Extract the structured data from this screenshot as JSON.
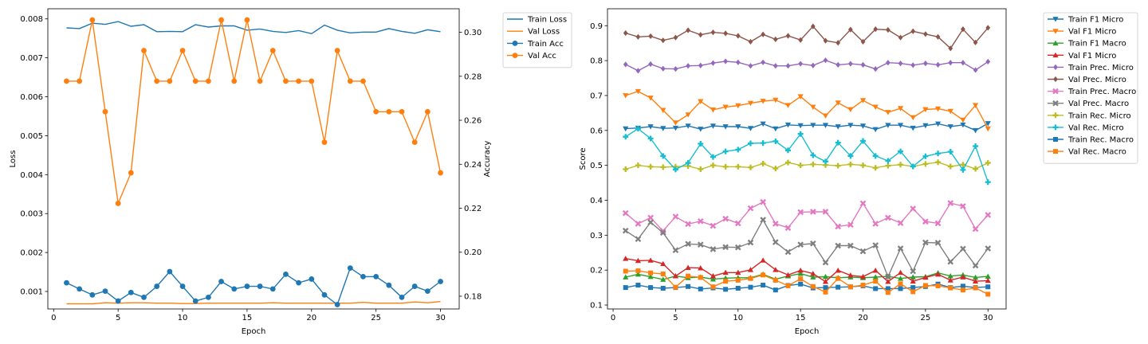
{
  "chart_data": [
    {
      "type": "line",
      "xlabel": "Epoch",
      "ylabel": "Loss",
      "y2label": "Accuracy",
      "xlim": [
        -0.45,
        31.45
      ],
      "ylim": [
        0.00055,
        0.00826
      ],
      "y2lim": [
        0.1742,
        0.3107
      ],
      "xticks": [
        0,
        5,
        10,
        15,
        20,
        25,
        30
      ],
      "yticks": [
        0.001,
        0.002,
        0.003,
        0.004,
        0.005,
        0.006,
        0.007,
        0.008
      ],
      "ytick_labels": [
        "0.001",
        "0.002",
        "0.003",
        "0.004",
        "0.005",
        "0.006",
        "0.007",
        "0.008"
      ],
      "y2ticks": [
        0.18,
        0.2,
        0.22,
        0.24,
        0.26,
        0.28,
        0.3
      ],
      "y2tick_labels": [
        "0.18",
        "0.20",
        "0.22",
        "0.24",
        "0.26",
        "0.28",
        "0.30"
      ],
      "grid": false,
      "legend_position": "outside-top-right",
      "x": [
        1,
        2,
        3,
        4,
        5,
        6,
        7,
        8,
        9,
        10,
        11,
        12,
        13,
        14,
        15,
        16,
        17,
        18,
        19,
        20,
        21,
        22,
        23,
        24,
        25,
        26,
        27,
        28,
        29,
        30
      ],
      "series": [
        {
          "name": "Train Loss",
          "axis": "left",
          "color": "#1f77b4",
          "marker": "none",
          "values": [
            0.00777,
            0.00775,
            0.00789,
            0.00786,
            0.00793,
            0.00781,
            0.00785,
            0.00767,
            0.00768,
            0.00767,
            0.00785,
            0.00779,
            0.00782,
            0.00782,
            0.00771,
            0.00774,
            0.00768,
            0.00765,
            0.0077,
            0.00762,
            0.00784,
            0.00771,
            0.00764,
            0.00766,
            0.00766,
            0.00775,
            0.00768,
            0.00763,
            0.00772,
            0.00767
          ]
        },
        {
          "name": "Val Loss",
          "axis": "left",
          "color": "#ff7f0e",
          "marker": "none",
          "values": [
            0.00068,
            0.00068,
            0.00068,
            0.00071,
            0.0007,
            0.00071,
            0.00071,
            0.0007,
            0.0007,
            0.00069,
            0.00069,
            0.0007,
            0.0007,
            0.0007,
            0.0007,
            0.0007,
            0.00071,
            0.0007,
            0.0007,
            0.0007,
            0.0007,
            0.0007,
            0.0007,
            0.00072,
            0.0007,
            0.0007,
            0.0007,
            0.00073,
            0.00071,
            0.00074
          ]
        },
        {
          "name": "Train Acc",
          "axis": "right",
          "color": "#1f77b4",
          "marker": "circle",
          "values": [
            0.1861,
            0.1833,
            0.1806,
            0.1823,
            0.1778,
            0.1817,
            0.1795,
            0.1845,
            0.1912,
            0.1845,
            0.1778,
            0.1795,
            0.1867,
            0.1833,
            0.1845,
            0.1845,
            0.1833,
            0.19,
            0.1861,
            0.1878,
            0.1806,
            0.1762,
            0.1928,
            0.1889,
            0.1889,
            0.185,
            0.1795,
            0.1845,
            0.1823,
            0.1867
          ]
        },
        {
          "name": "Val Acc",
          "axis": "right",
          "color": "#ff7f0e",
          "marker": "circle",
          "values": [
            0.2778,
            0.2778,
            0.3056,
            0.2639,
            0.2222,
            0.2361,
            0.2917,
            0.2778,
            0.2778,
            0.2917,
            0.2778,
            0.2778,
            0.3056,
            0.2778,
            0.3056,
            0.2778,
            0.2917,
            0.2778,
            0.2778,
            0.2778,
            0.25,
            0.2917,
            0.2778,
            0.2778,
            0.2639,
            0.2639,
            0.2639,
            0.25,
            0.2639,
            0.2361
          ]
        }
      ]
    },
    {
      "type": "line",
      "xlabel": "Epoch",
      "ylabel": "Score",
      "xlim": [
        -0.45,
        31.45
      ],
      "ylim": [
        0.0887,
        0.9485
      ],
      "xticks": [
        0,
        5,
        10,
        15,
        20,
        25,
        30
      ],
      "yticks": [
        0.1,
        0.2,
        0.3,
        0.4,
        0.5,
        0.6,
        0.7,
        0.8,
        0.9
      ],
      "ytick_labels": [
        "0.1",
        "0.2",
        "0.3",
        "0.4",
        "0.5",
        "0.6",
        "0.7",
        "0.8",
        "0.9"
      ],
      "grid": false,
      "legend_position": "outside-top-right",
      "x": [
        1,
        2,
        3,
        4,
        5,
        6,
        7,
        8,
        9,
        10,
        11,
        12,
        13,
        14,
        15,
        16,
        17,
        18,
        19,
        20,
        21,
        22,
        23,
        24,
        25,
        26,
        27,
        28,
        29,
        30
      ],
      "series": [
        {
          "name": "Train F1 Micro",
          "color": "#1f77b4",
          "marker": "triangle-down",
          "values": [
            0.605,
            0.607,
            0.611,
            0.606,
            0.607,
            0.613,
            0.604,
            0.613,
            0.611,
            0.611,
            0.606,
            0.619,
            0.605,
            0.616,
            0.614,
            0.615,
            0.615,
            0.611,
            0.615,
            0.613,
            0.603,
            0.615,
            0.615,
            0.607,
            0.614,
            0.619,
            0.611,
            0.616,
            0.6,
            0.62
          ]
        },
        {
          "name": "Val F1 Micro",
          "color": "#ff7f0e",
          "marker": "triangle-down",
          "values": [
            0.7,
            0.712,
            0.693,
            0.658,
            0.622,
            0.645,
            0.683,
            0.659,
            0.667,
            0.671,
            0.678,
            0.684,
            0.687,
            0.672,
            0.697,
            0.667,
            0.642,
            0.679,
            0.66,
            0.686,
            0.667,
            0.652,
            0.663,
            0.637,
            0.66,
            0.662,
            0.655,
            0.63,
            0.672,
            0.605
          ]
        },
        {
          "name": "Train F1 Macro",
          "color": "#2ca02c",
          "marker": "triangle-up",
          "values": [
            0.18,
            0.188,
            0.181,
            0.173,
            0.183,
            0.178,
            0.18,
            0.174,
            0.177,
            0.178,
            0.178,
            0.188,
            0.174,
            0.183,
            0.19,
            0.18,
            0.181,
            0.178,
            0.18,
            0.178,
            0.18,
            0.182,
            0.176,
            0.18,
            0.181,
            0.192,
            0.183,
            0.186,
            0.179,
            0.182
          ]
        },
        {
          "name": "Val F1 Micro",
          "color": "#d62728",
          "marker": "triangle-up",
          "values": [
            0.233,
            0.227,
            0.228,
            0.218,
            0.183,
            0.207,
            0.206,
            0.183,
            0.193,
            0.193,
            0.201,
            0.228,
            0.201,
            0.186,
            0.199,
            0.19,
            0.167,
            0.199,
            0.185,
            0.181,
            0.199,
            0.167,
            0.193,
            0.168,
            0.179,
            0.188,
            0.171,
            0.18,
            0.168,
            0.17
          ]
        },
        {
          "name": "Train Prec. Micro",
          "color": "#9467bd",
          "marker": "diamond",
          "values": [
            0.789,
            0.771,
            0.79,
            0.777,
            0.776,
            0.785,
            0.786,
            0.793,
            0.798,
            0.795,
            0.785,
            0.795,
            0.785,
            0.785,
            0.791,
            0.786,
            0.801,
            0.788,
            0.791,
            0.788,
            0.776,
            0.794,
            0.792,
            0.787,
            0.792,
            0.788,
            0.794,
            0.794,
            0.773,
            0.797
          ]
        },
        {
          "name": "Val Prec. Micro",
          "color": "#8c564b",
          "marker": "diamond",
          "values": [
            0.879,
            0.868,
            0.87,
            0.858,
            0.866,
            0.887,
            0.874,
            0.881,
            0.878,
            0.871,
            0.854,
            0.875,
            0.861,
            0.871,
            0.859,
            0.898,
            0.857,
            0.851,
            0.889,
            0.854,
            0.89,
            0.888,
            0.866,
            0.884,
            0.876,
            0.868,
            0.835,
            0.89,
            0.852,
            0.894
          ]
        },
        {
          "name": "Train Prec. Macro",
          "color": "#e377c2",
          "marker": "x",
          "values": [
            0.363,
            0.333,
            0.35,
            0.312,
            0.353,
            0.332,
            0.34,
            0.327,
            0.347,
            0.334,
            0.377,
            0.395,
            0.333,
            0.321,
            0.366,
            0.367,
            0.367,
            0.325,
            0.33,
            0.391,
            0.333,
            0.35,
            0.335,
            0.376,
            0.339,
            0.334,
            0.392,
            0.383,
            0.318,
            0.358
          ]
        },
        {
          "name": "Val Prec. Macro",
          "color": "#7f7f7f",
          "marker": "x",
          "values": [
            0.313,
            0.289,
            0.337,
            0.307,
            0.257,
            0.275,
            0.273,
            0.26,
            0.266,
            0.265,
            0.279,
            0.344,
            0.28,
            0.252,
            0.273,
            0.276,
            0.222,
            0.27,
            0.27,
            0.254,
            0.271,
            0.181,
            0.262,
            0.197,
            0.279,
            0.278,
            0.224,
            0.261,
            0.213,
            0.262
          ]
        },
        {
          "name": "Train Rec. Micro",
          "color": "#bcbd22",
          "marker": "plus",
          "values": [
            0.489,
            0.5,
            0.496,
            0.495,
            0.496,
            0.498,
            0.489,
            0.5,
            0.496,
            0.496,
            0.494,
            0.505,
            0.491,
            0.508,
            0.5,
            0.503,
            0.501,
            0.499,
            0.503,
            0.5,
            0.493,
            0.499,
            0.502,
            0.497,
            0.504,
            0.509,
            0.497,
            0.502,
            0.49,
            0.507
          ]
        },
        {
          "name": "Val Rec. Micro",
          "color": "#17becf",
          "marker": "plus",
          "values": [
            0.582,
            0.605,
            0.577,
            0.527,
            0.488,
            0.507,
            0.562,
            0.524,
            0.54,
            0.545,
            0.563,
            0.564,
            0.569,
            0.543,
            0.59,
            0.529,
            0.511,
            0.565,
            0.527,
            0.57,
            0.527,
            0.513,
            0.54,
            0.497,
            0.526,
            0.534,
            0.539,
            0.487,
            0.555,
            0.452
          ]
        },
        {
          "name": "Train Rec. Macro",
          "color": "#1f77b4",
          "marker": "square",
          "values": [
            0.15,
            0.157,
            0.15,
            0.148,
            0.15,
            0.153,
            0.146,
            0.149,
            0.145,
            0.148,
            0.151,
            0.157,
            0.143,
            0.156,
            0.16,
            0.149,
            0.15,
            0.151,
            0.152,
            0.155,
            0.147,
            0.147,
            0.147,
            0.15,
            0.153,
            0.16,
            0.15,
            0.154,
            0.15,
            0.152
          ]
        },
        {
          "name": "Val Rec. Macro",
          "color": "#ff7f0e",
          "marker": "square",
          "values": [
            0.197,
            0.198,
            0.192,
            0.189,
            0.151,
            0.183,
            0.179,
            0.152,
            0.168,
            0.171,
            0.176,
            0.186,
            0.171,
            0.155,
            0.175,
            0.153,
            0.137,
            0.176,
            0.152,
            0.157,
            0.168,
            0.136,
            0.161,
            0.138,
            0.156,
            0.155,
            0.149,
            0.143,
            0.149,
            0.131
          ]
        }
      ]
    }
  ]
}
